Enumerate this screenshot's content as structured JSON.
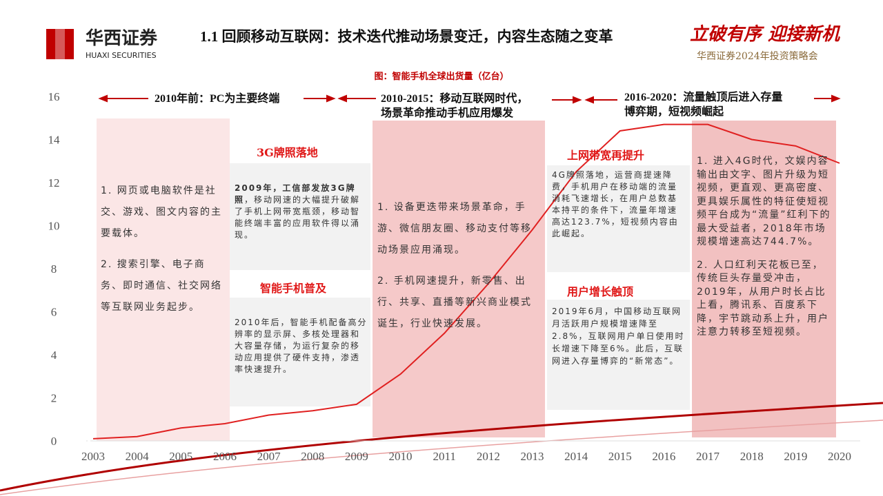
{
  "header": {
    "logo_cn": "华西证券",
    "logo_en": "HUAXI SECURITIES",
    "title": "1.1 回顾移动互联网：技术迭代推动场景变迁，内容生态随之变革",
    "slogan": "立破有序 迎接新机",
    "event": "华西证券2024年投资策略会"
  },
  "periods": [
    [
      "2010年前：PC为主要终端"
    ],
    [
      "2010-2015：移动互联网时代，",
      "场景革命推动手机应用爆发"
    ],
    [
      "2016-2020：流量触顶后进入存量",
      "博弈期，短视频崛起"
    ]
  ],
  "panels": [
    [
      "1. 网页或电脑软件是社交、游戏、图文内容的主要载体。",
      "2. 搜索引擎、电子商务、即时通信、社交网络等互联网业务起步。"
    ],
    [
      "1. 设备更迭带来场景革命，手游、微信朋友圈、移动支付等移动场景应用涌现。",
      "2. 手机网速提升，新零售、出行、共享、直播等新兴商业模式诞生，行业快速发展。"
    ],
    [
      "1. 进入4G时代，文娱内容输出由文字、图片升级为短视频，更直观、更高密度、更具娱乐属性的特征使短视频平台成为“流量”红利下的最大受益者，2018年市场规模增速高达744.7%。",
      "2. 人口红利天花板已至，传统巨头存量受冲击，2019年，从用户时长占比上看，腾讯系、百度系下降，宇节跳动系上升，用户注意力转移至短视频。"
    ]
  ],
  "notes": [
    {
      "heading": "3G牌照落地",
      "bold": "2009年，工信部发放3G牌照",
      "text": "，移动网速的大幅提升破解了手机上网带宽瓶颈，移动智能终端丰富的应用软件得以涌现。"
    },
    {
      "heading": "智能手机普及",
      "text": "2010年后，智能手机配备高分辨率的显示屏、多核处理器和大容量存储，为运行复杂的移动应用提供了硬件支持，渗透率快速提升。"
    },
    {
      "heading": "上网带宽再提升",
      "text": "4G牌照落地，运营商提速降费，手机用户在移动端的流量消耗飞速增长，在用户总数基本持平的条件下，流量年增速高达123.7%，短视频内容由此崛起。"
    },
    {
      "heading": "用户增长触顶",
      "text": "2019年6月，中国移动互联网月活跃用户规模增速降至2.8%，互联网用户单日使用时长增速下降至6%。此后，互联网进入存量博弈的“新常态”。"
    }
  ],
  "chart_data": {
    "type": "line",
    "title": "图：智能手机全球出货量（亿台）",
    "categories": [
      "2003",
      "2004",
      "2005",
      "2006",
      "2007",
      "2008",
      "2009",
      "2010",
      "2011",
      "2012",
      "2013",
      "2014",
      "2015",
      "2016",
      "2017",
      "2018",
      "2019",
      "2020"
    ],
    "values": [
      0.1,
      0.2,
      0.6,
      0.8,
      1.2,
      1.4,
      1.7,
      3.1,
      5.0,
      7.3,
      9.8,
      12.5,
      14.4,
      14.7,
      14.7,
      14.0,
      13.7,
      12.9
    ],
    "color": "#e02020",
    "ylim": [
      0,
      16
    ],
    "yticks": [
      0,
      2,
      4,
      6,
      8,
      10,
      12,
      14,
      16
    ]
  }
}
